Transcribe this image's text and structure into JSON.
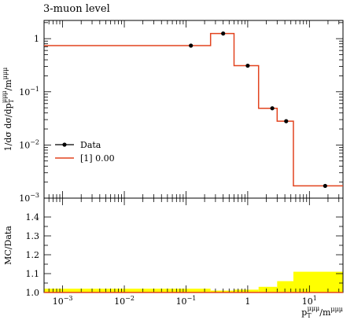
{
  "title": "3-muon level",
  "chart_data": [
    {
      "type": "step",
      "panel": "main",
      "ylabel": "1/dσ dσ/dp_T^μμμ/m^μμμ",
      "yscale": "log",
      "ylim": [
        0.001,
        2.2
      ],
      "xscale": "log",
      "xlim": [
        0.0005,
        35
      ],
      "yticks": [
        {
          "value": 0.001,
          "label": "10",
          "exp": "−3"
        },
        {
          "value": 0.01,
          "label": "10",
          "exp": "−2"
        },
        {
          "value": 0.1,
          "label": "10",
          "exp": "−1"
        },
        {
          "value": 1,
          "label": "1",
          "exp": ""
        }
      ],
      "series": [
        {
          "name": "Data",
          "color": "#000000",
          "points": [
            {
              "x": 0.12,
              "y": 0.74
            },
            {
              "x": 0.4,
              "y": 1.25
            },
            {
              "x": 1.0,
              "y": 0.31
            },
            {
              "x": 2.5,
              "y": 0.049
            },
            {
              "x": 4.2,
              "y": 0.028
            },
            {
              "x": 18,
              "y": 0.0017
            }
          ]
        },
        {
          "name": "[1] 0.00",
          "color": "#e2431e",
          "bin_edges": [
            0.0005,
            0.25,
            0.6,
            1.5,
            3.0,
            5.5,
            35
          ],
          "values": [
            0.74,
            1.25,
            0.31,
            0.049,
            0.028,
            0.0017
          ]
        }
      ],
      "legend": {
        "position": "center-left",
        "entries": [
          "Data",
          "[1] 0.00"
        ]
      }
    },
    {
      "type": "ratio",
      "panel": "ratio",
      "ylabel": "MC/Data",
      "xlabel": "p_T^μμμ/m^μμμ",
      "ylim": [
        1.0,
        1.5
      ],
      "yticks": [
        1.0,
        1.1,
        1.2,
        1.3,
        1.4
      ],
      "xticks": [
        {
          "value": 0.001,
          "label": "10",
          "exp": "−3"
        },
        {
          "value": 0.01,
          "label": "10",
          "exp": "−2"
        },
        {
          "value": 0.1,
          "label": "10",
          "exp": "−1"
        },
        {
          "value": 1,
          "label": "1",
          "exp": ""
        },
        {
          "value": 10,
          "label": "10",
          "exp": "1"
        }
      ],
      "band_color": "#ffff00",
      "bin_edges": [
        0.0005,
        0.25,
        0.6,
        1.5,
        3.0,
        5.5,
        35
      ],
      "band_upper": [
        1.02,
        1.01,
        1.015,
        1.03,
        1.06,
        1.11
      ]
    }
  ]
}
